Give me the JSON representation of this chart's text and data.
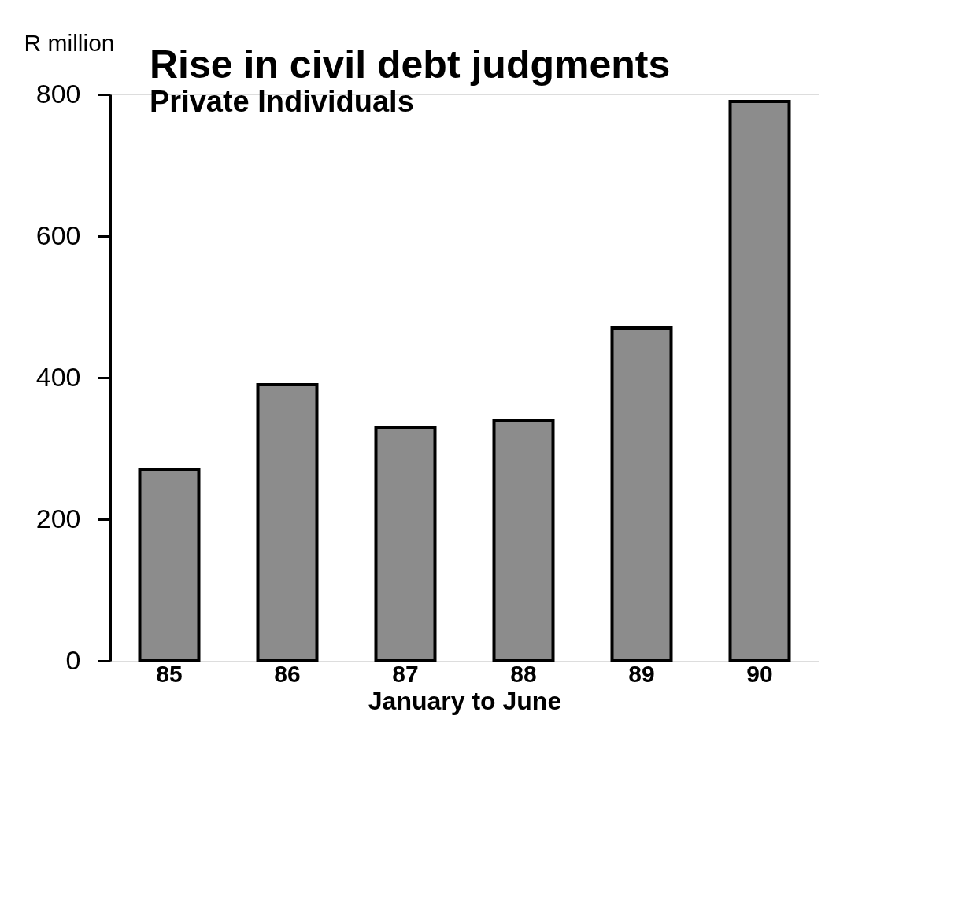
{
  "chart_data": {
    "type": "bar",
    "title": "Rise in civil debt judgments",
    "subtitle": "Private Individuals",
    "ylabel": "R million",
    "xlabel": "January to June",
    "categories": [
      "85",
      "86",
      "87",
      "88",
      "89",
      "90"
    ],
    "values": [
      270,
      390,
      330,
      340,
      470,
      790
    ],
    "color": "#8c8c8c",
    "ylim": [
      0,
      800
    ],
    "yticks": [
      0,
      200,
      400,
      600,
      800
    ],
    "grid": false
  }
}
